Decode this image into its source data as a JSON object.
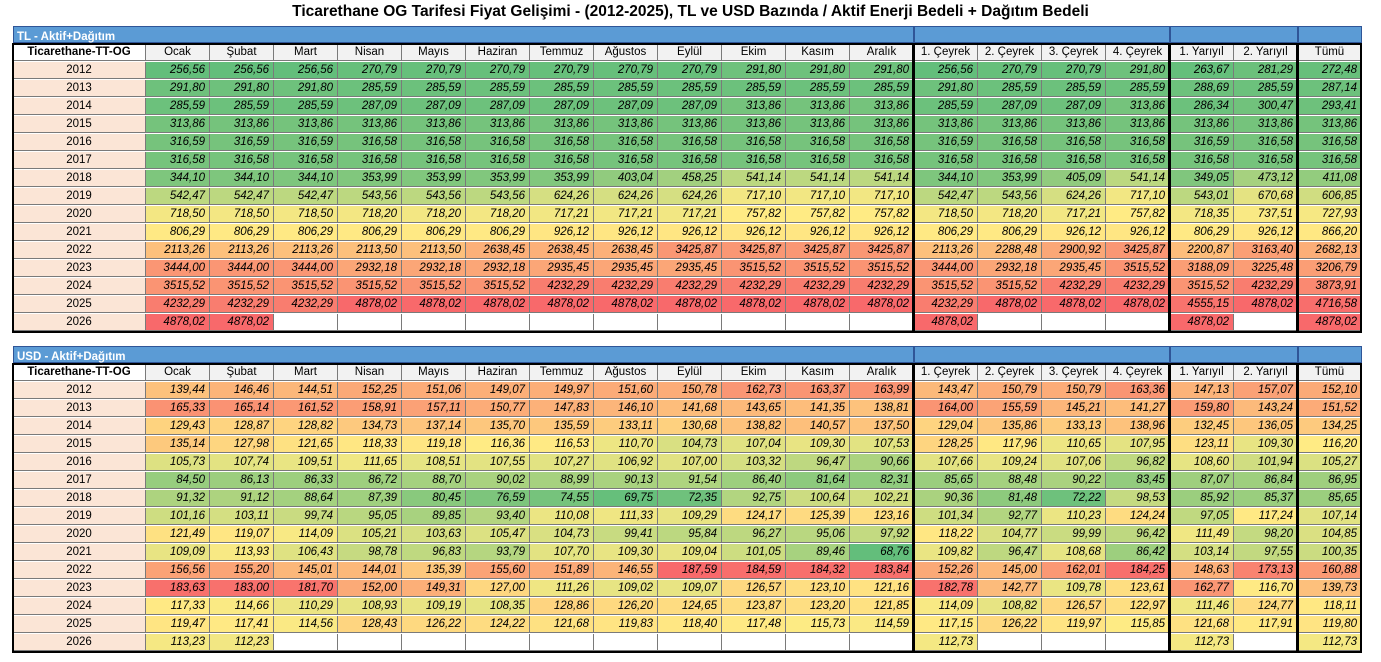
{
  "title": "Ticarethane OG Tarifesi Fiyat Gelişimi - (2012-2025), TL ve USD Bazında / Aktif Enerji Bedeli + Dağıtım Bedeli",
  "columns": [
    "Ocak",
    "Şubat",
    "Mart",
    "Nisan",
    "Mayıs",
    "Haziran",
    "Temmuz",
    "Ağustos",
    "Eylül",
    "Ekim",
    "Kasım",
    "Aralık",
    "1. Çeyrek",
    "2. Çeyrek",
    "3. Çeyrek",
    "4. Çeyrek",
    "1. Yarıyıl",
    "2. Yarıyıl",
    "Tümü"
  ],
  "colors": {
    "band": "#5b9bd5",
    "year_fill": "#fbe5d6",
    "scale_low": "#63be7b",
    "scale_mid": "#ffeb84",
    "scale_high": "#f8696b"
  },
  "tables": [
    {
      "band_label": "TL - Aktif+Dağıtım",
      "row_header": "Ticarethane-TT-OG",
      "rows": [
        {
          "year": "2012",
          "values": [
            "256,56",
            "256,56",
            "256,56",
            "270,79",
            "270,79",
            "270,79",
            "270,79",
            "270,79",
            "270,79",
            "291,80",
            "291,80",
            "291,80",
            "256,56",
            "270,79",
            "270,79",
            "291,80",
            "263,67",
            "281,29",
            "272,48"
          ]
        },
        {
          "year": "2013",
          "values": [
            "291,80",
            "291,80",
            "291,80",
            "285,59",
            "285,59",
            "285,59",
            "285,59",
            "285,59",
            "285,59",
            "285,59",
            "285,59",
            "285,59",
            "291,80",
            "285,59",
            "285,59",
            "285,59",
            "288,69",
            "285,59",
            "287,14"
          ]
        },
        {
          "year": "2014",
          "values": [
            "285,59",
            "285,59",
            "285,59",
            "287,09",
            "287,09",
            "287,09",
            "287,09",
            "287,09",
            "287,09",
            "313,86",
            "313,86",
            "313,86",
            "285,59",
            "287,09",
            "287,09",
            "313,86",
            "286,34",
            "300,47",
            "293,41"
          ]
        },
        {
          "year": "2015",
          "values": [
            "313,86",
            "313,86",
            "313,86",
            "313,86",
            "313,86",
            "313,86",
            "313,86",
            "313,86",
            "313,86",
            "313,86",
            "313,86",
            "313,86",
            "313,86",
            "313,86",
            "313,86",
            "313,86",
            "313,86",
            "313,86",
            "313,86"
          ]
        },
        {
          "year": "2016",
          "values": [
            "316,59",
            "316,59",
            "316,59",
            "316,58",
            "316,58",
            "316,58",
            "316,58",
            "316,58",
            "316,58",
            "316,58",
            "316,58",
            "316,58",
            "316,59",
            "316,58",
            "316,58",
            "316,58",
            "316,59",
            "316,58",
            "316,58"
          ]
        },
        {
          "year": "2017",
          "values": [
            "316,58",
            "316,58",
            "316,58",
            "316,58",
            "316,58",
            "316,58",
            "316,58",
            "316,58",
            "316,58",
            "316,58",
            "316,58",
            "316,58",
            "316,58",
            "316,58",
            "316,58",
            "316,58",
            "316,58",
            "316,58",
            "316,58"
          ]
        },
        {
          "year": "2018",
          "values": [
            "344,10",
            "344,10",
            "344,10",
            "353,99",
            "353,99",
            "353,99",
            "353,99",
            "403,04",
            "458,25",
            "541,14",
            "541,14",
            "541,14",
            "344,10",
            "353,99",
            "405,09",
            "541,14",
            "349,05",
            "473,12",
            "411,08"
          ]
        },
        {
          "year": "2019",
          "values": [
            "542,47",
            "542,47",
            "542,47",
            "543,56",
            "543,56",
            "543,56",
            "624,26",
            "624,26",
            "624,26",
            "717,10",
            "717,10",
            "717,10",
            "542,47",
            "543,56",
            "624,26",
            "717,10",
            "543,01",
            "670,68",
            "606,85"
          ]
        },
        {
          "year": "2020",
          "values": [
            "718,50",
            "718,50",
            "718,50",
            "718,20",
            "718,20",
            "718,20",
            "717,21",
            "717,21",
            "717,21",
            "757,82",
            "757,82",
            "757,82",
            "718,50",
            "718,20",
            "717,21",
            "757,82",
            "718,35",
            "737,51",
            "727,93"
          ]
        },
        {
          "year": "2021",
          "values": [
            "806,29",
            "806,29",
            "806,29",
            "806,29",
            "806,29",
            "806,29",
            "926,12",
            "926,12",
            "926,12",
            "926,12",
            "926,12",
            "926,12",
            "806,29",
            "806,29",
            "926,12",
            "926,12",
            "806,29",
            "926,12",
            "866,20"
          ]
        },
        {
          "year": "2022",
          "values": [
            "2113,26",
            "2113,26",
            "2113,26",
            "2113,50",
            "2113,50",
            "2638,45",
            "2638,45",
            "2638,45",
            "3425,87",
            "3425,87",
            "3425,87",
            "3425,87",
            "2113,26",
            "2288,48",
            "2900,92",
            "3425,87",
            "2200,87",
            "3163,40",
            "2682,13"
          ]
        },
        {
          "year": "2023",
          "values": [
            "3444,00",
            "3444,00",
            "3444,00",
            "2932,18",
            "2932,18",
            "2932,18",
            "2935,45",
            "2935,45",
            "2935,45",
            "3515,52",
            "3515,52",
            "3515,52",
            "3444,00",
            "2932,18",
            "2935,45",
            "3515,52",
            "3188,09",
            "3225,48",
            "3206,79"
          ]
        },
        {
          "year": "2024",
          "values": [
            "3515,52",
            "3515,52",
            "3515,52",
            "3515,52",
            "3515,52",
            "3515,52",
            "4232,29",
            "4232,29",
            "4232,29",
            "4232,29",
            "4232,29",
            "4232,29",
            "3515,52",
            "3515,52",
            "4232,29",
            "4232,29",
            "3515,52",
            "4232,29",
            "3873,91"
          ]
        },
        {
          "year": "2025",
          "values": [
            "4232,29",
            "4232,29",
            "4232,29",
            "4878,02",
            "4878,02",
            "4878,02",
            "4878,02",
            "4878,02",
            "4878,02",
            "4878,02",
            "4878,02",
            "4878,02",
            "4232,29",
            "4878,02",
            "4878,02",
            "4878,02",
            "4555,15",
            "4878,02",
            "4716,58"
          ]
        },
        {
          "year": "2026",
          "values": [
            "4878,02",
            "4878,02",
            "",
            "",
            "",
            "",
            "",
            "",
            "",
            "",
            "",
            "",
            "4878,02",
            "",
            "",
            "",
            "4878,02",
            "",
            "4878,02"
          ]
        }
      ]
    },
    {
      "band_label": "USD - Aktif+Dağıtım",
      "row_header": "Ticarethane-TT-OG",
      "rows": [
        {
          "year": "2012",
          "values": [
            "139,44",
            "146,46",
            "144,51",
            "152,25",
            "151,06",
            "149,07",
            "149,97",
            "151,60",
            "150,78",
            "162,73",
            "163,37",
            "163,99",
            "143,47",
            "150,79",
            "150,79",
            "163,36",
            "147,13",
            "157,07",
            "152,10"
          ]
        },
        {
          "year": "2013",
          "values": [
            "165,33",
            "165,14",
            "161,52",
            "158,91",
            "157,11",
            "150,77",
            "147,83",
            "146,10",
            "141,68",
            "143,65",
            "141,35",
            "138,81",
            "164,00",
            "155,59",
            "145,21",
            "141,27",
            "159,80",
            "143,24",
            "151,52"
          ]
        },
        {
          "year": "2014",
          "values": [
            "129,43",
            "128,87",
            "128,82",
            "134,73",
            "137,14",
            "135,70",
            "135,59",
            "133,11",
            "130,68",
            "138,82",
            "140,57",
            "137,50",
            "129,04",
            "135,86",
            "133,13",
            "138,96",
            "132,45",
            "136,05",
            "134,25"
          ]
        },
        {
          "year": "2015",
          "values": [
            "135,14",
            "127,98",
            "121,65",
            "118,33",
            "119,18",
            "116,36",
            "116,53",
            "110,70",
            "104,73",
            "107,04",
            "109,30",
            "107,53",
            "128,25",
            "117,96",
            "110,65",
            "107,95",
            "123,11",
            "109,30",
            "116,20"
          ]
        },
        {
          "year": "2016",
          "values": [
            "105,73",
            "107,74",
            "109,51",
            "111,65",
            "108,51",
            "107,55",
            "107,27",
            "106,92",
            "107,00",
            "103,32",
            "96,47",
            "90,66",
            "107,66",
            "109,24",
            "107,06",
            "96,82",
            "108,60",
            "101,94",
            "105,27"
          ]
        },
        {
          "year": "2017",
          "values": [
            "84,50",
            "86,13",
            "86,33",
            "86,72",
            "88,70",
            "90,02",
            "88,99",
            "90,13",
            "91,54",
            "86,40",
            "81,64",
            "82,31",
            "85,65",
            "88,48",
            "90,22",
            "83,45",
            "87,07",
            "86,84",
            "86,95"
          ]
        },
        {
          "year": "2018",
          "values": [
            "91,32",
            "91,12",
            "88,64",
            "87,39",
            "80,45",
            "76,59",
            "74,55",
            "69,75",
            "72,35",
            "92,75",
            "100,64",
            "102,21",
            "90,36",
            "81,48",
            "72,22",
            "98,53",
            "85,92",
            "85,37",
            "85,65"
          ]
        },
        {
          "year": "2019",
          "values": [
            "101,16",
            "103,11",
            "99,74",
            "95,05",
            "89,85",
            "93,40",
            "110,08",
            "111,33",
            "109,29",
            "124,17",
            "125,39",
            "123,16",
            "101,34",
            "92,77",
            "110,23",
            "124,24",
            "97,05",
            "117,24",
            "107,14"
          ]
        },
        {
          "year": "2020",
          "values": [
            "121,49",
            "119,07",
            "114,09",
            "105,21",
            "103,63",
            "105,47",
            "104,73",
            "99,41",
            "95,84",
            "96,27",
            "95,06",
            "97,92",
            "118,22",
            "104,77",
            "99,99",
            "96,42",
            "111,49",
            "98,20",
            "104,85"
          ]
        },
        {
          "year": "2021",
          "values": [
            "109,09",
            "113,93",
            "106,43",
            "98,78",
            "96,83",
            "93,79",
            "107,70",
            "109,30",
            "109,04",
            "101,05",
            "89,46",
            "68,76",
            "109,82",
            "96,47",
            "108,68",
            "86,42",
            "103,14",
            "97,55",
            "100,35"
          ]
        },
        {
          "year": "2022",
          "values": [
            "156,56",
            "155,20",
            "145,01",
            "144,01",
            "135,39",
            "155,60",
            "151,89",
            "146,55",
            "187,59",
            "184,59",
            "184,32",
            "183,84",
            "152,26",
            "145,00",
            "162,01",
            "184,25",
            "148,63",
            "173,13",
            "160,88"
          ]
        },
        {
          "year": "2023",
          "values": [
            "183,63",
            "183,00",
            "181,70",
            "152,00",
            "149,31",
            "127,00",
            "111,26",
            "109,02",
            "109,07",
            "126,57",
            "123,10",
            "121,16",
            "182,78",
            "142,77",
            "109,78",
            "123,61",
            "162,77",
            "116,70",
            "139,73"
          ]
        },
        {
          "year": "2024",
          "values": [
            "117,33",
            "114,66",
            "110,29",
            "108,93",
            "109,19",
            "108,35",
            "128,86",
            "126,20",
            "124,65",
            "123,87",
            "123,20",
            "121,85",
            "114,09",
            "108,82",
            "126,57",
            "122,97",
            "111,46",
            "124,77",
            "118,11"
          ]
        },
        {
          "year": "2025",
          "values": [
            "119,47",
            "117,41",
            "114,56",
            "128,43",
            "126,22",
            "124,22",
            "121,68",
            "119,83",
            "118,40",
            "117,48",
            "115,73",
            "114,59",
            "117,15",
            "126,22",
            "119,97",
            "115,85",
            "121,68",
            "117,91",
            "119,80"
          ]
        },
        {
          "year": "2026",
          "values": [
            "113,23",
            "112,23",
            "",
            "",
            "",
            "",
            "",
            "",
            "",
            "",
            "",
            "",
            "112,73",
            "",
            "",
            "",
            "112,73",
            "",
            "112,73"
          ]
        }
      ]
    }
  ]
}
